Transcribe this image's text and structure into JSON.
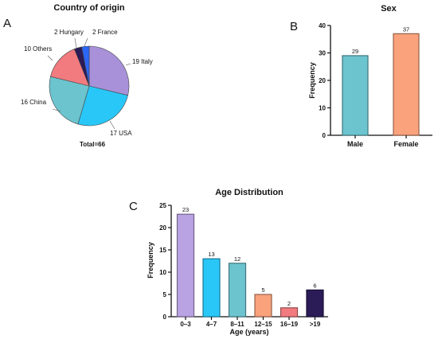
{
  "panels": {
    "a": "A",
    "b": "B",
    "c": "C"
  },
  "chart_data": [
    {
      "type": "pie",
      "title": "Country of origin",
      "slices": [
        {
          "label": "19 Italy",
          "value": 19,
          "color": "#a891d9"
        },
        {
          "label": "17 USA",
          "value": 17,
          "color": "#29c7f7"
        },
        {
          "label": "16 China",
          "value": 16,
          "color": "#6cc4cf"
        },
        {
          "label": "10 Others",
          "value": 10,
          "color": "#f27b80"
        },
        {
          "label": "2 Hungary",
          "value": 2,
          "color": "#2b1b57"
        },
        {
          "label": "2 France",
          "value": 2,
          "color": "#2c66f5"
        }
      ],
      "annotation": "Total=66"
    },
    {
      "type": "bar",
      "title": "Sex",
      "categories": [
        "Male",
        "Female"
      ],
      "values": [
        29,
        37
      ],
      "data_labels": [
        "29",
        "37"
      ],
      "colors": [
        "#6cc4cf",
        "#f9a27c"
      ],
      "ylabel": "Frequency",
      "xlabel": "",
      "ylim": [
        0,
        40
      ],
      "yticks": [
        0,
        10,
        20,
        30,
        40
      ],
      "grid": false
    },
    {
      "type": "bar",
      "title": "Age Distribution",
      "categories": [
        "0–3",
        "4–7",
        "8–11",
        "12–15",
        "16–19",
        ">19"
      ],
      "values": [
        23,
        13,
        12,
        5,
        2,
        6
      ],
      "data_labels": [
        "23",
        "13",
        "12",
        "5",
        "2",
        "6"
      ],
      "colors": [
        "#b9a3e3",
        "#29c7f7",
        "#6cc4cf",
        "#f9a27c",
        "#f27b80",
        "#2b1b57"
      ],
      "xlabel": "Age (years)",
      "ylabel": "Frequency",
      "ylim": [
        0,
        25
      ],
      "yticks": [
        0,
        5,
        10,
        15,
        20,
        25
      ],
      "grid": false
    }
  ]
}
